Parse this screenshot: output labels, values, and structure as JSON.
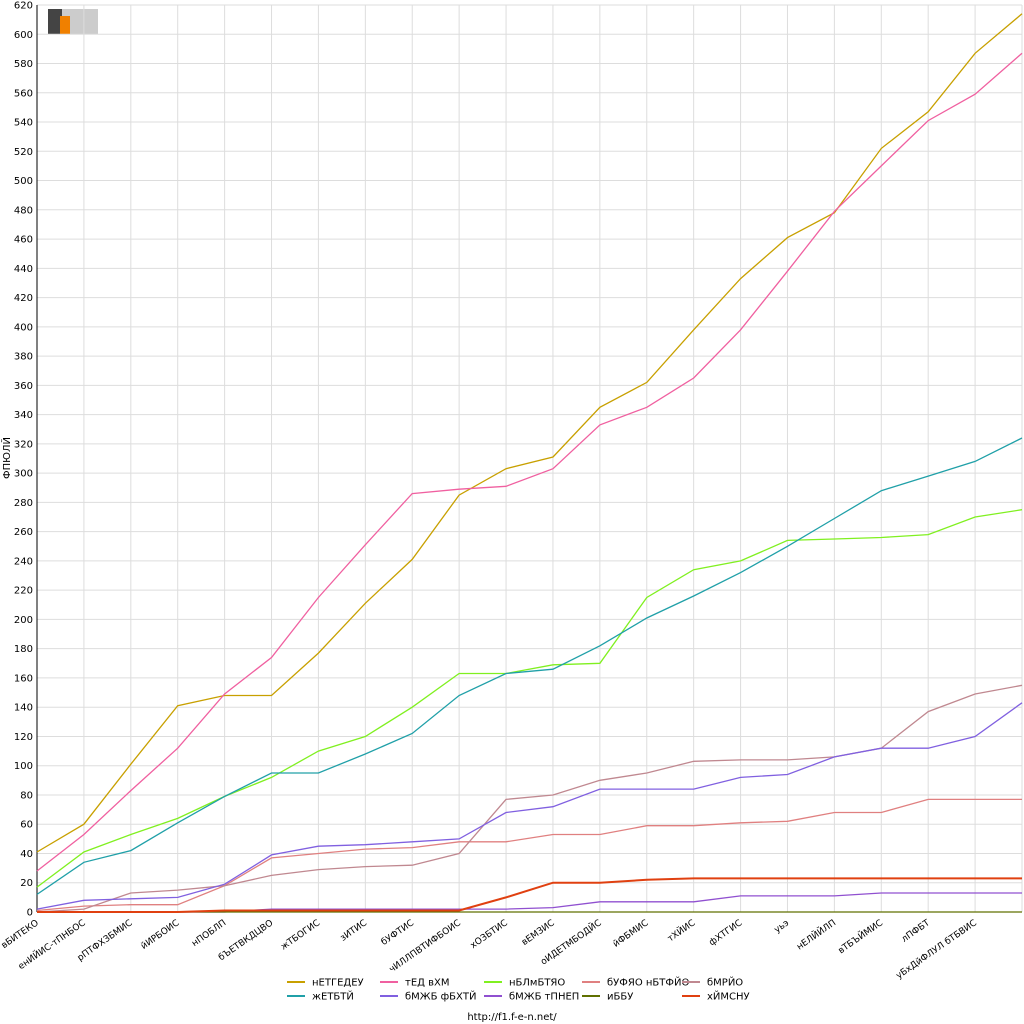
{
  "chart_data": {
    "type": "line",
    "ylabel": "ФПЮЛЙ",
    "footer": "http://f1.f-e-n.net/",
    "categories": [
      "вБИТЕКО",
      "енИЙИС-тПНБОС",
      "рПТФХЗБМИС",
      "йИРБОИС",
      "нПОБЛП",
      "бЪЕТВКДЦВО",
      "жТБОГИС",
      "зИТИС",
      "бУФТИС",
      "чИЛЛПВТИФБОИС",
      "хОЗБТИС",
      "вЕМЗИС",
      "оИДЕТМБОДЙС",
      "йФБМИС",
      "тХЙИС",
      "фХТГИС",
      "уьэ",
      "нЕЛЙЙЛП",
      "вТБЪЙМИС",
      "лПФБТ",
      "уБхДйФЛУЛ бТБВИС",
      null
    ],
    "ylim": [
      0,
      620
    ],
    "yticks": [
      0,
      20,
      40,
      60,
      80,
      100,
      120,
      140,
      160,
      180,
      200,
      220,
      240,
      260,
      280,
      300,
      320,
      340,
      360,
      380,
      400,
      420,
      440,
      460,
      480,
      500,
      520,
      540,
      560,
      580,
      600,
      620
    ],
    "grid": true,
    "legend": "bottom",
    "series": [
      {
        "name": "нЕТГЕДЕУ",
        "color": "#c8a000",
        "values": [
          41,
          60,
          101,
          141,
          148,
          148,
          177,
          211,
          241,
          285,
          303,
          311,
          345,
          362,
          398,
          433,
          461,
          478,
          522,
          547,
          587,
          614
        ]
      },
      {
        "name": "тЕД вХМ",
        "color": "#f060a0",
        "values": [
          28,
          53,
          83,
          112,
          149,
          174,
          215,
          251,
          286,
          289,
          291,
          303,
          333,
          345,
          365,
          398,
          438,
          479,
          510,
          541,
          559,
          587
        ]
      },
      {
        "name": "нБЛмБТЯО",
        "color": "#80f020",
        "values": [
          17,
          41,
          53,
          64,
          79,
          92,
          110,
          120,
          140,
          163,
          163,
          169,
          170,
          215,
          234,
          240,
          254,
          255,
          256,
          258,
          270,
          275
        ]
      },
      {
        "name": "бУФЯО нБТФЙО",
        "color": "#e08080",
        "values": [
          1,
          4,
          5,
          5,
          18,
          37,
          40,
          43,
          44,
          48,
          48,
          53,
          53,
          59,
          59,
          61,
          62,
          68,
          68,
          77,
          77,
          77
        ]
      },
      {
        "name": "бМРЙО",
        "color": "#c08890",
        "values": [
          0,
          2,
          13,
          15,
          18,
          25,
          29,
          31,
          32,
          40,
          77,
          80,
          90,
          95,
          103,
          104,
          104,
          106,
          112,
          137,
          149,
          155
        ]
      },
      {
        "name": "жЕТБТЙ",
        "color": "#20a0a8",
        "values": [
          12,
          34,
          42,
          61,
          79,
          95,
          95,
          108,
          122,
          148,
          163,
          166,
          182,
          201,
          216,
          232,
          250,
          269,
          288,
          298,
          308,
          324
        ]
      },
      {
        "name": "бМЖБ фБХТЙ",
        "color": "#8060e0",
        "values": [
          2,
          8,
          9,
          10,
          19,
          39,
          45,
          46,
          48,
          50,
          68,
          72,
          84,
          84,
          84,
          92,
          94,
          106,
          112,
          112,
          120,
          143
        ]
      },
      {
        "name": "бМЖБ тПНЕП",
        "color": "#9050d0",
        "values": [
          0,
          0,
          0,
          0,
          0,
          2,
          2,
          2,
          2,
          2,
          2,
          3,
          7,
          7,
          7,
          11,
          11,
          11,
          13,
          13,
          13,
          13
        ]
      },
      {
        "name": "иББУ",
        "color": "#607000",
        "values": [
          0,
          0,
          0,
          0,
          0,
          0,
          0,
          0,
          0,
          0,
          0,
          0,
          0,
          0,
          0,
          0,
          0,
          0,
          0,
          0,
          0,
          0
        ]
      },
      {
        "name": "хЙМСНУ",
        "color": "#e04010",
        "values": [
          0,
          0,
          0,
          0,
          1,
          1,
          1,
          1,
          1,
          1,
          10,
          20,
          20,
          22,
          23,
          23,
          23,
          23,
          23,
          23,
          23,
          23
        ]
      }
    ]
  }
}
